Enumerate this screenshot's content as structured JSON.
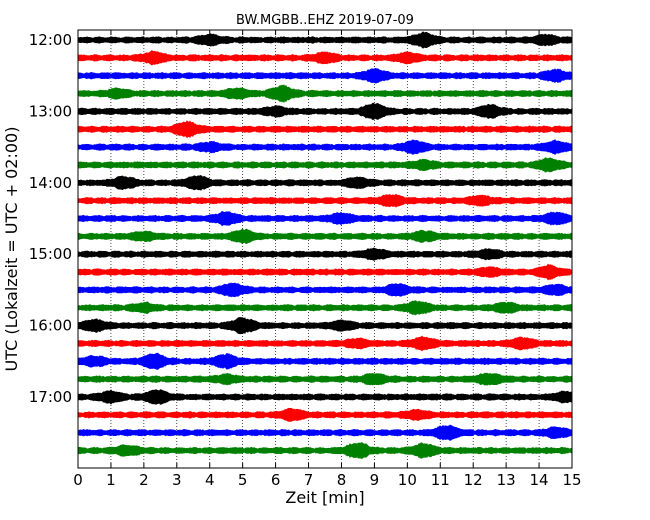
{
  "chart_data": {
    "type": "line",
    "title": "BW.MGBB..EHZ 2019-07-09",
    "xlabel": "Zeit  [min]",
    "ylabel": "UTC (Lokalzeit = UTC + 02:00)",
    "xlim": [
      0,
      15
    ],
    "x_ticks": [
      "0",
      "1",
      "2",
      "3",
      "4",
      "5",
      "6",
      "7",
      "8",
      "9",
      "10",
      "11",
      "12",
      "13",
      "14",
      "15"
    ],
    "y_ticks": [
      "12:00",
      "13:00",
      "14:00",
      "15:00",
      "16:00",
      "17:00"
    ],
    "grid": "vertical dotted",
    "row_interval_min": 15,
    "series_colors": [
      "#000000",
      "#ff0000",
      "#0000ff",
      "#008000"
    ],
    "rows": [
      {
        "start": "12:00",
        "color": "#000000",
        "bursts": [
          [
            10.5,
            0.9
          ],
          [
            4.0,
            0.6
          ],
          [
            14.2,
            0.6
          ]
        ]
      },
      {
        "start": "12:15",
        "color": "#ff0000",
        "bursts": [
          [
            2.3,
            0.7
          ],
          [
            7.5,
            0.6
          ],
          [
            10.0,
            0.6
          ]
        ]
      },
      {
        "start": "12:30",
        "color": "#0000ff",
        "bursts": [
          [
            9.0,
            0.8
          ],
          [
            14.5,
            0.7
          ]
        ]
      },
      {
        "start": "12:45",
        "color": "#008000",
        "bursts": [
          [
            6.2,
            1.0
          ],
          [
            4.8,
            0.6
          ],
          [
            1.2,
            0.5
          ]
        ]
      },
      {
        "start": "13:00",
        "color": "#000000",
        "bursts": [
          [
            9.0,
            1.0
          ],
          [
            12.5,
            0.8
          ],
          [
            6.0,
            0.5
          ]
        ]
      },
      {
        "start": "13:15",
        "color": "#ff0000",
        "bursts": [
          [
            3.3,
            1.0
          ]
        ]
      },
      {
        "start": "13:30",
        "color": "#0000ff",
        "bursts": [
          [
            10.2,
            0.8
          ],
          [
            14.5,
            0.7
          ],
          [
            4.0,
            0.5
          ]
        ]
      },
      {
        "start": "13:45",
        "color": "#008000",
        "bursts": [
          [
            14.3,
            0.8
          ],
          [
            10.5,
            0.5
          ]
        ]
      },
      {
        "start": "14:00",
        "color": "#000000",
        "bursts": [
          [
            1.4,
            0.7
          ],
          [
            3.6,
            0.9
          ],
          [
            8.5,
            0.6
          ]
        ]
      },
      {
        "start": "14:15",
        "color": "#ff0000",
        "bursts": [
          [
            9.5,
            0.7
          ],
          [
            12.2,
            0.6
          ]
        ]
      },
      {
        "start": "14:30",
        "color": "#0000ff",
        "bursts": [
          [
            4.5,
            0.8
          ],
          [
            14.5,
            0.7
          ],
          [
            8.0,
            0.6
          ]
        ]
      },
      {
        "start": "14:45",
        "color": "#008000",
        "bursts": [
          [
            5.0,
            0.8
          ],
          [
            10.5,
            0.6
          ],
          [
            2.0,
            0.5
          ]
        ]
      },
      {
        "start": "15:00",
        "color": "#000000",
        "bursts": [
          [
            9.0,
            0.6
          ],
          [
            12.5,
            0.5
          ]
        ]
      },
      {
        "start": "15:15",
        "color": "#ff0000",
        "bursts": [
          [
            14.3,
            0.8
          ],
          [
            12.5,
            0.5
          ]
        ]
      },
      {
        "start": "15:30",
        "color": "#0000ff",
        "bursts": [
          [
            4.7,
            0.8
          ],
          [
            9.7,
            0.7
          ],
          [
            14.5,
            0.6
          ]
        ]
      },
      {
        "start": "15:45",
        "color": "#008000",
        "bursts": [
          [
            10.3,
            0.8
          ],
          [
            13.0,
            0.6
          ],
          [
            2.0,
            0.5
          ]
        ]
      },
      {
        "start": "16:00",
        "color": "#000000",
        "bursts": [
          [
            5.0,
            1.0
          ],
          [
            0.5,
            0.7
          ],
          [
            8.0,
            0.6
          ]
        ]
      },
      {
        "start": "16:15",
        "color": "#ff0000",
        "bursts": [
          [
            10.5,
            0.8
          ],
          [
            13.5,
            0.7
          ],
          [
            8.5,
            0.5
          ]
        ]
      },
      {
        "start": "16:30",
        "color": "#0000ff",
        "bursts": [
          [
            2.3,
            1.0
          ],
          [
            4.5,
            0.9
          ],
          [
            0.5,
            0.6
          ]
        ]
      },
      {
        "start": "16:45",
        "color": "#008000",
        "bursts": [
          [
            12.5,
            0.7
          ],
          [
            9.0,
            0.6
          ],
          [
            4.5,
            0.5
          ]
        ]
      },
      {
        "start": "17:00",
        "color": "#000000",
        "bursts": [
          [
            2.4,
            0.9
          ],
          [
            1.0,
            0.7
          ],
          [
            14.8,
            0.6
          ]
        ]
      },
      {
        "start": "17:15",
        "color": "#ff0000",
        "bursts": [
          [
            6.5,
            0.7
          ],
          [
            10.3,
            0.5
          ]
        ]
      },
      {
        "start": "17:30",
        "color": "#0000ff",
        "bursts": [
          [
            11.2,
            0.9
          ],
          [
            14.5,
            0.6
          ]
        ]
      },
      {
        "start": "17:45",
        "color": "#008000",
        "bursts": [
          [
            8.5,
            1.0
          ],
          [
            10.5,
            0.9
          ],
          [
            1.5,
            0.6
          ]
        ]
      }
    ]
  }
}
